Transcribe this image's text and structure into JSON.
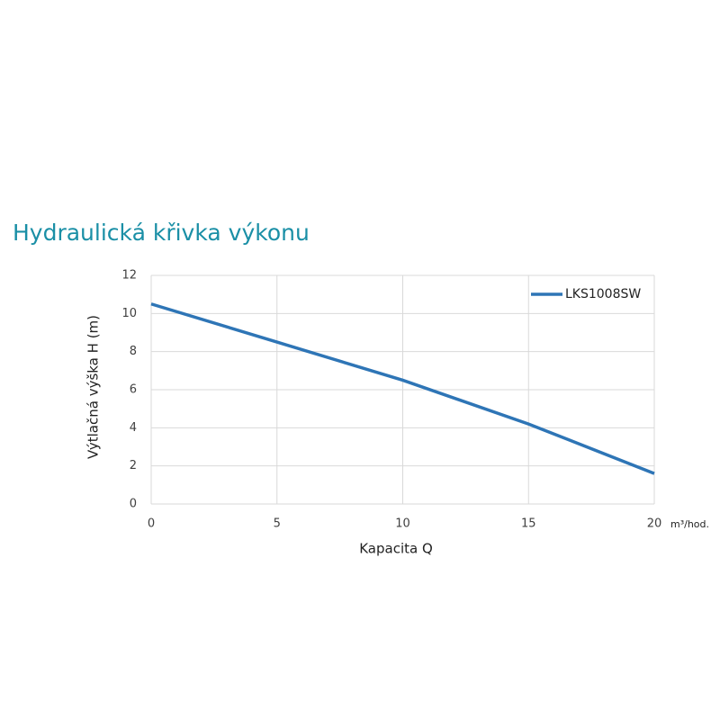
{
  "chart_data": {
    "type": "line",
    "title": "Hydraulická křivka výkonu",
    "x_label": "Kapacita Q",
    "x_unit": "m³/hod.",
    "y_label": "Výtlačná výška H (m)",
    "x": [
      0,
      5,
      10,
      15,
      20
    ],
    "series": [
      {
        "name": "LKS1008SW",
        "color": "#2e75b6",
        "values": [
          10.5,
          8.5,
          6.5,
          4.2,
          1.6
        ]
      }
    ],
    "xlim": [
      0,
      20
    ],
    "xticks": [
      0,
      5,
      10,
      15,
      20
    ],
    "ylim": [
      0,
      12
    ],
    "yticks": [
      0,
      2,
      4,
      6,
      8,
      10,
      12
    ],
    "grid": true,
    "legend": "top-right"
  }
}
